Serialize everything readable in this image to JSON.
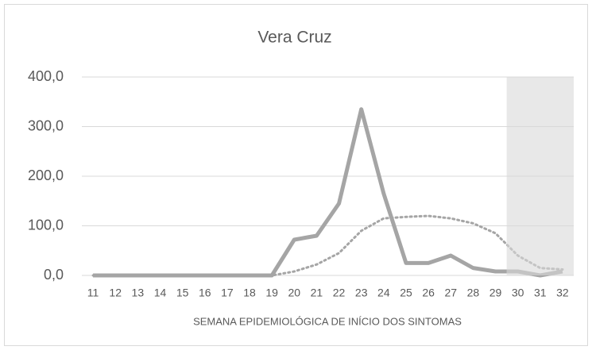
{
  "chart_data": {
    "type": "line",
    "title": "Vera Cruz",
    "x_label": "SEMANA EPIDEMIOLÓGICA DE INÍCIO DOS SINTOMAS",
    "categories": [
      "11",
      "12",
      "13",
      "14",
      "15",
      "16",
      "17",
      "18",
      "19",
      "20",
      "21",
      "22",
      "23",
      "24",
      "25",
      "26",
      "27",
      "28",
      "29",
      "30",
      "31",
      "32"
    ],
    "series": [
      {
        "color": "#a5a5a5",
        "style": "solid",
        "values": [
          0,
          0,
          0,
          0,
          0,
          0,
          0,
          0,
          0,
          72,
          80,
          145,
          335,
          165,
          25,
          25,
          40,
          15,
          8,
          8,
          0,
          8
        ]
      },
      {
        "color": "#a5a5a5",
        "style": "dotted",
        "values": [
          0,
          0,
          0,
          0,
          0,
          0,
          0,
          0,
          0,
          8,
          22,
          45,
          90,
          115,
          118,
          120,
          115,
          105,
          85,
          40,
          15,
          12
        ]
      }
    ],
    "ylim": [
      0,
      400
    ],
    "yticks": [
      {
        "value": 0,
        "label": "0,0"
      },
      {
        "value": 100,
        "label": "100,0"
      },
      {
        "value": 200,
        "label": "200,0"
      },
      {
        "value": 300,
        "label": "300,0"
      },
      {
        "value": 400,
        "label": "400,0"
      }
    ],
    "grid": true,
    "shade": {
      "from": "30",
      "to": "32",
      "color": "#d9d9d9"
    }
  }
}
